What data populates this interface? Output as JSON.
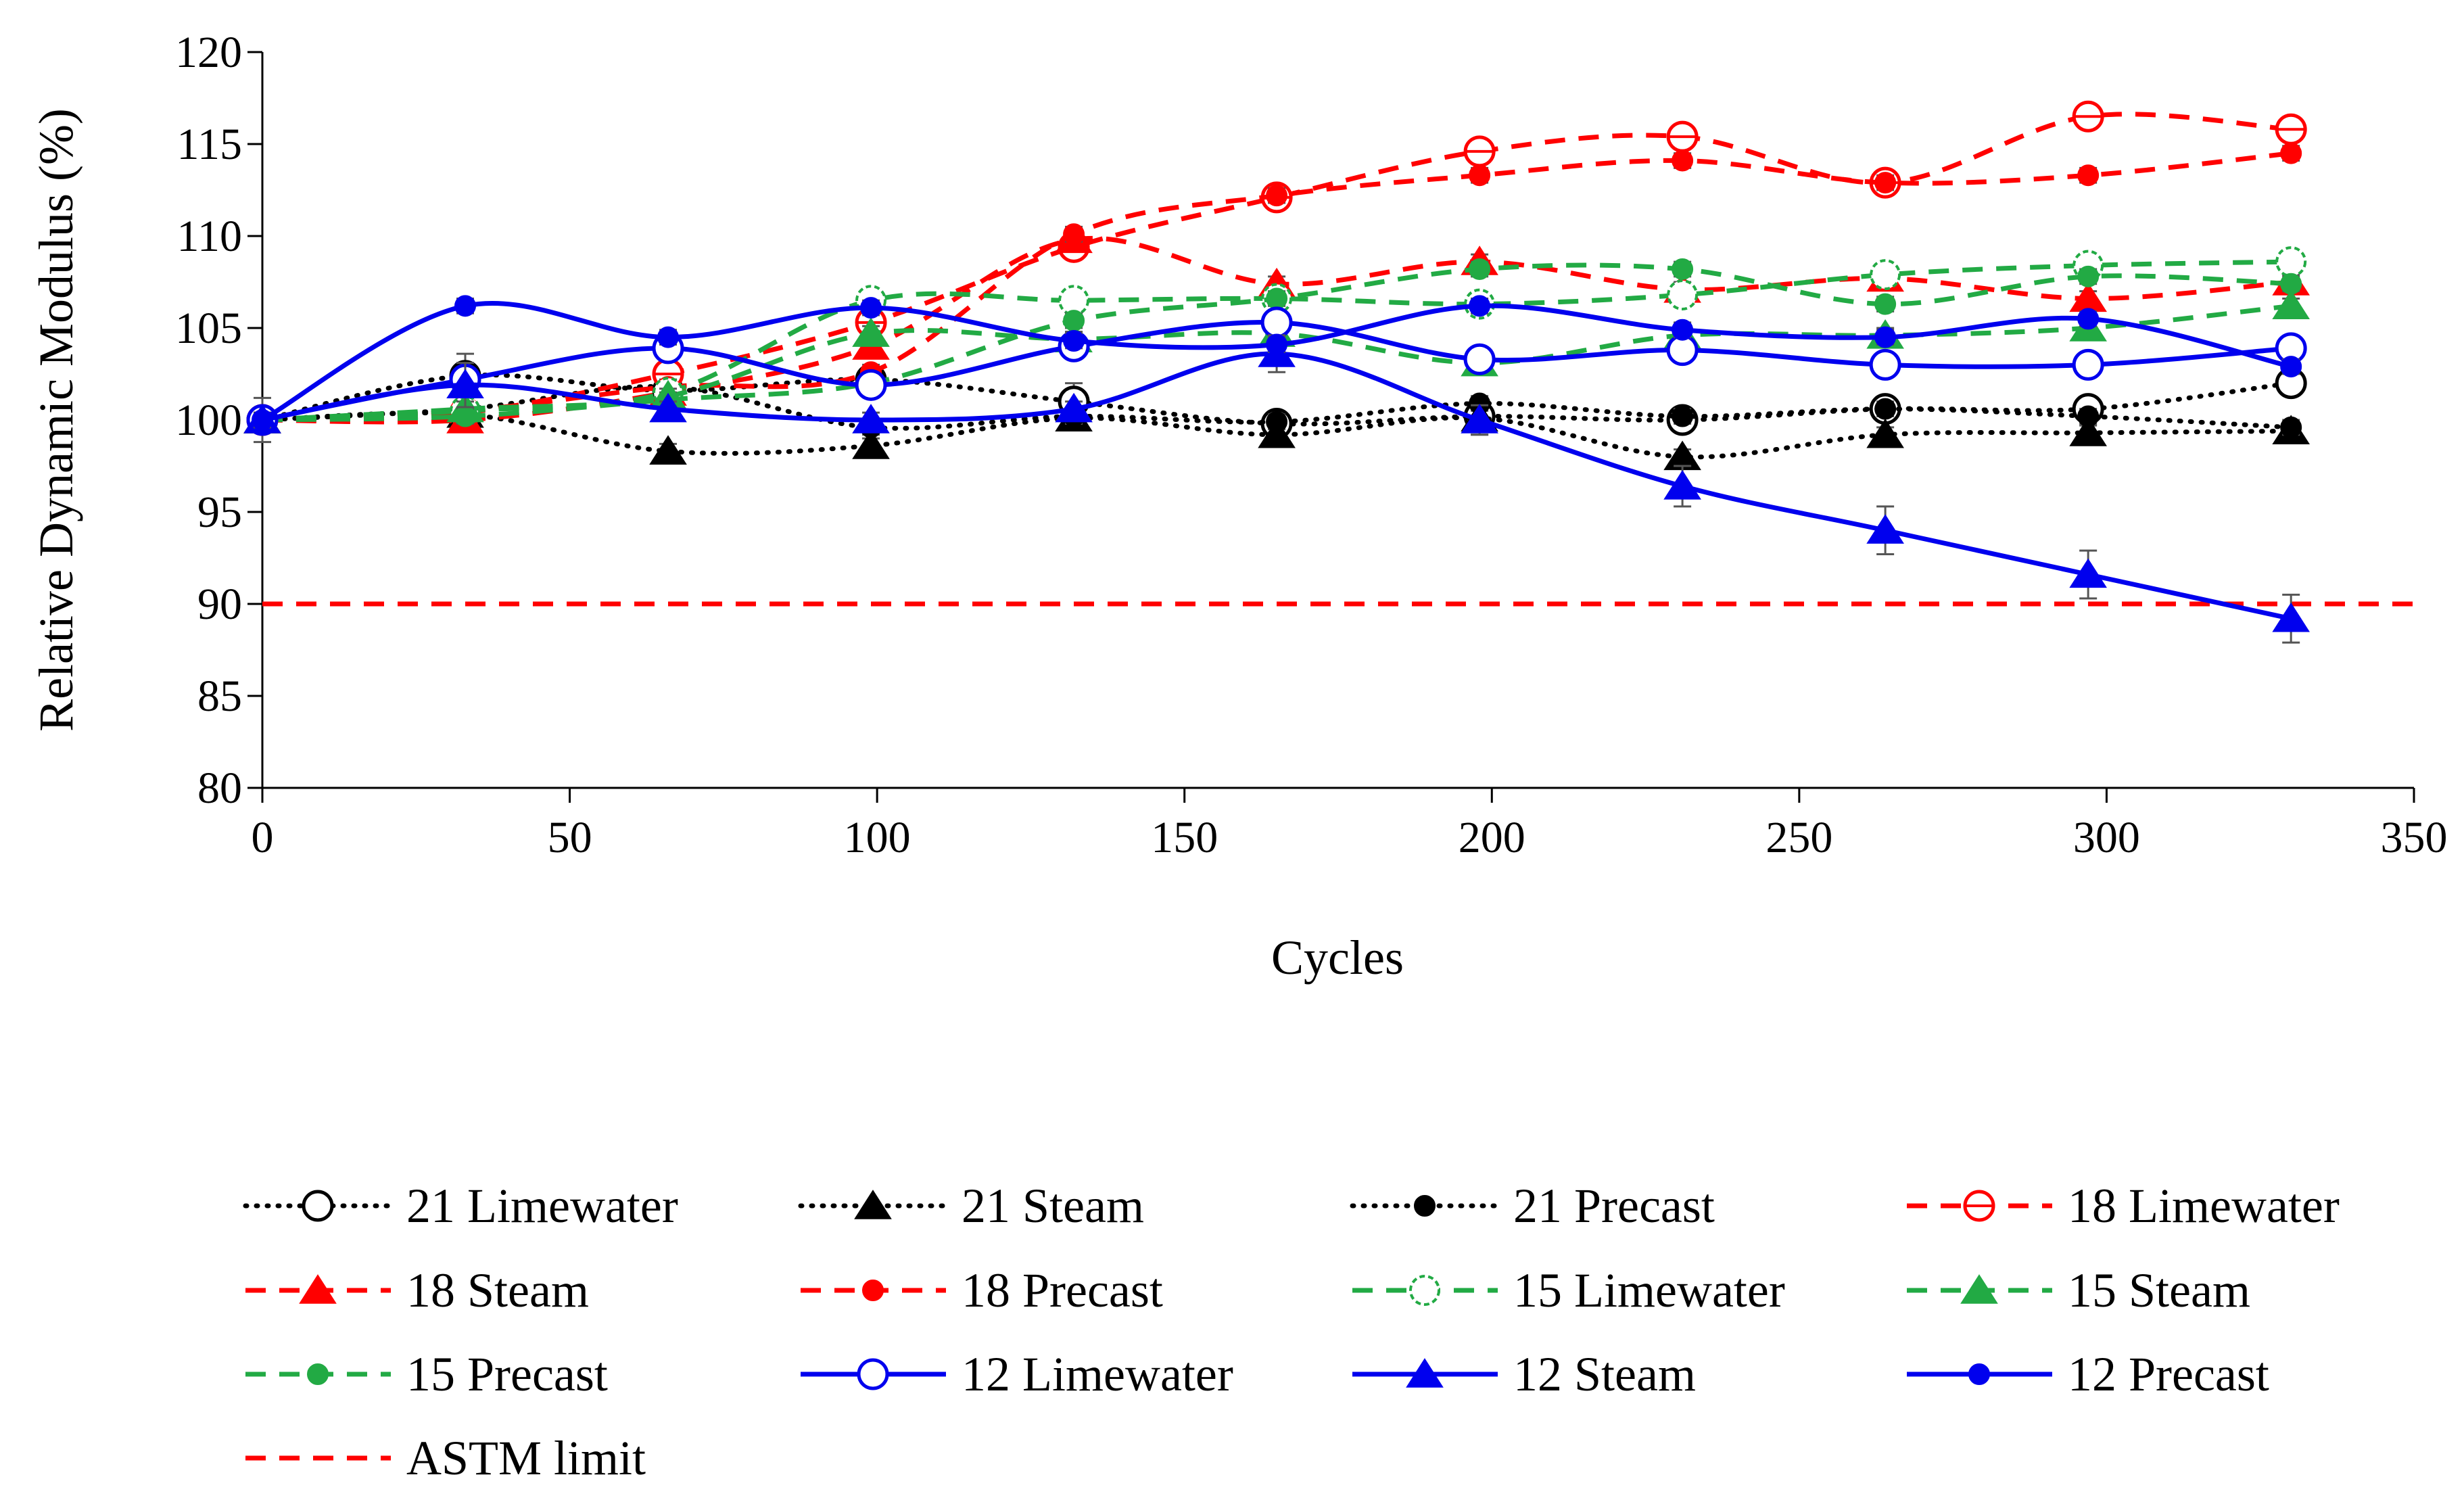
{
  "chart_data": {
    "type": "line",
    "title": "",
    "xlabel": "Cycles",
    "ylabel": "Relative Dynamic Modulus (%)",
    "xlim": [
      0,
      350
    ],
    "ylim": [
      80,
      120
    ],
    "xticks": [
      0,
      50,
      100,
      150,
      200,
      250,
      300,
      350
    ],
    "yticks": [
      80,
      85,
      90,
      95,
      100,
      105,
      110,
      115,
      120
    ],
    "grid": false,
    "legend_position": "bottom",
    "x": [
      0,
      33,
      66,
      99,
      132,
      165,
      198,
      231,
      264,
      297,
      330
    ],
    "series": [
      {
        "name": "21 Limewater",
        "color": "#000000",
        "line": "dotted",
        "marker": "open-circle",
        "values": [
          100,
          102.4,
          101.6,
          102.2,
          101.0,
          99.8,
          100.2,
          100.0,
          100.6,
          100.6,
          102.0
        ],
        "errors": [
          1.2,
          1.2,
          0.5,
          0.5,
          1.0,
          0.4,
          0.5,
          0.4,
          0.4,
          0.5,
          0.4
        ]
      },
      {
        "name": "21 Steam",
        "color": "#000000",
        "line": "dotted",
        "marker": "filled-triangle",
        "values": [
          100,
          100.3,
          98.3,
          98.6,
          100.1,
          99.2,
          100.1,
          98.0,
          99.2,
          99.3,
          99.4
        ],
        "errors": [
          0.4,
          0.4,
          0.4,
          0.4,
          0.4,
          0.4,
          0.9,
          0.4,
          0.4,
          0.4,
          0.4
        ]
      },
      {
        "name": "21 Precast",
        "color": "#000000",
        "line": "dotted",
        "marker": "filled-circle",
        "values": [
          100,
          100.6,
          101.8,
          99.6,
          100.2,
          99.9,
          100.9,
          100.2,
          100.6,
          100.2,
          99.6
        ],
        "errors": [
          0.4,
          0.4,
          0.4,
          0.4,
          0.4,
          0.4,
          0.4,
          0.4,
          0.4,
          0.4,
          0.4
        ]
      },
      {
        "name": "18 Limewater",
        "color": "#ff0000",
        "line": "dashed",
        "marker": "open-circle-bar",
        "values": [
          100,
          100.4,
          102.5,
          105.3,
          109.4,
          112.1,
          114.6,
          115.4,
          112.9,
          116.5,
          115.8
        ],
        "errors": [
          0.4,
          0.4,
          0.4,
          0.4,
          0.4,
          0.4,
          0.4,
          0.4,
          0.4,
          0.4,
          0.4
        ]
      },
      {
        "name": "18 Steam",
        "color": "#ff0000",
        "line": "dashed",
        "marker": "filled-triangle",
        "values": [
          100,
          100.0,
          101.5,
          104.0,
          109.8,
          107.4,
          108.6,
          107.1,
          107.7,
          106.6,
          107.5
        ],
        "errors": [
          0.4,
          0.6,
          0.4,
          0.4,
          0.4,
          0.4,
          0.4,
          0.4,
          0.4,
          0.4,
          0.4
        ]
      },
      {
        "name": "18 Precast",
        "color": "#ff0000",
        "line": "dashed",
        "marker": "filled-circle",
        "values": [
          100,
          100.5,
          101.8,
          102.6,
          110.1,
          112.2,
          113.3,
          114.1,
          112.9,
          113.3,
          114.5
        ],
        "errors": [
          0.4,
          0.4,
          0.4,
          0.4,
          0.4,
          0.4,
          0.4,
          0.4,
          0.4,
          0.4,
          0.4
        ]
      },
      {
        "name": "15 Limewater",
        "color": "#22aa44",
        "line": "dashed",
        "marker": "open-circle-dashed",
        "values": [
          100,
          100.5,
          101.5,
          106.5,
          106.5,
          106.6,
          106.3,
          106.8,
          107.9,
          108.4,
          108.6
        ],
        "errors": [
          0.4,
          0.4,
          0.4,
          0.4,
          0.4,
          0.4,
          0.4,
          0.4,
          0.4,
          0.4,
          0.4
        ]
      },
      {
        "name": "15 Steam",
        "color": "#22aa44",
        "line": "dashed",
        "marker": "filled-triangle",
        "values": [
          100,
          100.6,
          101.3,
          104.7,
          104.4,
          104.7,
          103.1,
          104.6,
          104.6,
          105.0,
          106.2
        ],
        "errors": [
          0.4,
          0.4,
          0.4,
          0.4,
          0.4,
          0.4,
          0.4,
          0.4,
          0.4,
          0.4,
          0.4
        ]
      },
      {
        "name": "15 Precast",
        "color": "#22aa44",
        "line": "dashed",
        "marker": "filled-circle",
        "values": [
          100,
          100.2,
          101.1,
          102.0,
          105.4,
          106.6,
          108.2,
          108.2,
          106.3,
          107.8,
          107.4
        ],
        "errors": [
          0.4,
          0.4,
          0.4,
          0.4,
          0.4,
          0.4,
          0.4,
          0.4,
          0.4,
          0.4,
          0.4
        ]
      },
      {
        "name": "12 Limewater",
        "color": "#0000ee",
        "line": "solid",
        "marker": "open-circle",
        "values": [
          100,
          102.2,
          103.9,
          101.9,
          104.0,
          105.3,
          103.3,
          103.8,
          103.0,
          103.0,
          103.9
        ],
        "errors": [
          0.4,
          0.4,
          0.4,
          0.4,
          0.4,
          0.4,
          0.4,
          0.4,
          0.4,
          0.4,
          0.4
        ]
      },
      {
        "name": "12 Steam",
        "color": "#0000ee",
        "line": "solid",
        "marker": "filled-triangle",
        "values": [
          100,
          101.9,
          100.6,
          100.0,
          100.6,
          103.6,
          100.0,
          96.4,
          94.0,
          91.6,
          89.2
        ],
        "errors": [
          0.4,
          1.2,
          0.4,
          0.4,
          0.4,
          1.0,
          0.8,
          1.1,
          1.3,
          1.3,
          1.3
        ]
      },
      {
        "name": "12 Precast",
        "color": "#0000ee",
        "line": "solid",
        "marker": "filled-circle",
        "values": [
          100,
          106.2,
          104.5,
          106.1,
          104.3,
          104.1,
          106.2,
          104.9,
          104.5,
          105.5,
          102.9
        ],
        "errors": [
          0.4,
          0.4,
          0.4,
          0.4,
          0.4,
          0.4,
          0.4,
          0.4,
          0.4,
          0.4,
          0.4
        ]
      }
    ],
    "reference_lines": [
      {
        "name": "ASTM limit",
        "y": 90,
        "color": "#ff0000",
        "line": "dashed"
      }
    ]
  }
}
